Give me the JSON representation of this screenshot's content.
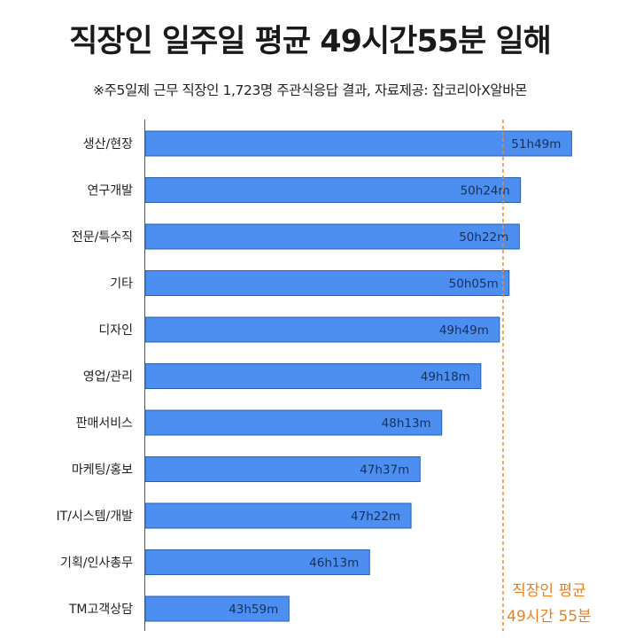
{
  "header": {
    "title": "직장인 일주일 평균 49시간55분 일해",
    "subtitle": "※주5일제 근무 직장인 1,723명 주관식응답 결과,  자료제공: 잡코리아X알바몬"
  },
  "chart_data": {
    "type": "bar",
    "orientation": "horizontal",
    "unit": "minutes",
    "categories": [
      "생산/현장",
      "연구개발",
      "전문/특수직",
      "기타",
      "디자인",
      "영업/관리",
      "판매서비스",
      "마케팅/홍보",
      "IT/시스템/개발",
      "기획/인사총무",
      "TM고객상담"
    ],
    "values": [
      3109,
      3024,
      3022,
      3005,
      2989,
      2958,
      2893,
      2857,
      2842,
      2773,
      2639
    ],
    "value_labels": [
      "51h49m",
      "50h24m",
      "50h22m",
      "50h05m",
      "49h49m",
      "49h18m",
      "48h13m",
      "47h37m",
      "47h22m",
      "46h13m",
      "43h59m"
    ],
    "average": {
      "value": 2995,
      "label_line1": "직장인 평균",
      "label_line2": "49시간 55분"
    },
    "xlim": [
      2400,
      3160
    ],
    "grid": false,
    "colors": {
      "bar": "#4c8ff0",
      "bar_border": "#2a5fae",
      "average_line": "#f08a2c",
      "average_text": "#f07e1a"
    }
  }
}
